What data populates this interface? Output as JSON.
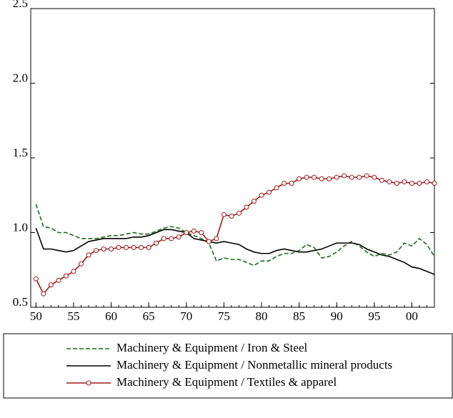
{
  "chart_data": {
    "type": "line",
    "x": [
      1950,
      1951,
      1952,
      1953,
      1954,
      1955,
      1956,
      1957,
      1958,
      1959,
      1960,
      1961,
      1962,
      1963,
      1964,
      1965,
      1966,
      1967,
      1968,
      1969,
      1970,
      1971,
      1972,
      1973,
      1974,
      1975,
      1976,
      1977,
      1978,
      1979,
      1980,
      1981,
      1982,
      1983,
      1984,
      1985,
      1986,
      1987,
      1988,
      1989,
      1990,
      1991,
      1992,
      1993,
      1994,
      1995,
      1996,
      1997,
      1998,
      1999,
      2000,
      2001,
      2002,
      2003
    ],
    "series": [
      {
        "name": "Machinery & Equipment / Iron & Steel",
        "color": "#1a6b1a",
        "dash": true,
        "marker": "none",
        "values": [
          1.19,
          1.04,
          1.03,
          1.0,
          1.0,
          0.98,
          0.96,
          0.96,
          0.96,
          0.97,
          0.98,
          0.98,
          0.99,
          1.0,
          0.99,
          0.99,
          1.01,
          1.03,
          1.04,
          1.03,
          1.0,
          0.98,
          0.96,
          0.93,
          0.81,
          0.83,
          0.82,
          0.82,
          0.8,
          0.78,
          0.81,
          0.81,
          0.84,
          0.86,
          0.86,
          0.88,
          0.92,
          0.9,
          0.83,
          0.84,
          0.87,
          0.91,
          0.94,
          0.91,
          0.87,
          0.84,
          0.86,
          0.85,
          0.87,
          0.93,
          0.91,
          0.96,
          0.92,
          0.84
        ]
      },
      {
        "name": "Machinery & Equipment / Nonmetallic mineral products",
        "color": "#000000",
        "dash": false,
        "marker": "none",
        "values": [
          1.03,
          0.89,
          0.89,
          0.88,
          0.87,
          0.88,
          0.91,
          0.94,
          0.95,
          0.96,
          0.96,
          0.96,
          0.96,
          0.97,
          0.97,
          0.98,
          1.0,
          1.02,
          1.02,
          1.01,
          1.0,
          0.96,
          0.95,
          0.94,
          0.93,
          0.94,
          0.93,
          0.92,
          0.89,
          0.87,
          0.86,
          0.86,
          0.88,
          0.89,
          0.88,
          0.87,
          0.87,
          0.88,
          0.89,
          0.91,
          0.93,
          0.93,
          0.93,
          0.92,
          0.89,
          0.87,
          0.85,
          0.84,
          0.82,
          0.8,
          0.77,
          0.76,
          0.74,
          0.72
        ]
      },
      {
        "name": "Machinery & Equipment / Textiles & apparel",
        "color": "#a01818",
        "dash": false,
        "marker": "circle",
        "values": [
          0.69,
          0.59,
          0.65,
          0.68,
          0.71,
          0.74,
          0.79,
          0.85,
          0.88,
          0.89,
          0.89,
          0.9,
          0.9,
          0.9,
          0.9,
          0.9,
          0.93,
          0.96,
          0.96,
          0.97,
          1.0,
          1.01,
          1.0,
          0.94,
          0.96,
          1.12,
          1.11,
          1.13,
          1.17,
          1.21,
          1.25,
          1.27,
          1.3,
          1.33,
          1.33,
          1.36,
          1.37,
          1.37,
          1.36,
          1.36,
          1.37,
          1.38,
          1.37,
          1.37,
          1.38,
          1.37,
          1.35,
          1.34,
          1.33,
          1.34,
          1.33,
          1.33,
          1.34,
          1.33
        ]
      }
    ],
    "xlim": [
      1949.3,
      2003
    ],
    "xticks": [
      {
        "value": 1950,
        "label": "50"
      },
      {
        "value": 1955,
        "label": "55"
      },
      {
        "value": 1960,
        "label": "60"
      },
      {
        "value": 1965,
        "label": "65"
      },
      {
        "value": 1970,
        "label": "70"
      },
      {
        "value": 1975,
        "label": "75"
      },
      {
        "value": 1980,
        "label": "80"
      },
      {
        "value": 1985,
        "label": "85"
      },
      {
        "value": 1990,
        "label": "90"
      },
      {
        "value": 1995,
        "label": "95"
      },
      {
        "value": 2000,
        "label": "00"
      }
    ],
    "ylim": [
      0.5,
      2.5
    ],
    "yticks": [
      0.5,
      {
        "value": 1.0,
        "label": "1.0"
      },
      1.5,
      {
        "value": 2.0,
        "label": "2.0"
      },
      2.5
    ],
    "grid": false
  }
}
